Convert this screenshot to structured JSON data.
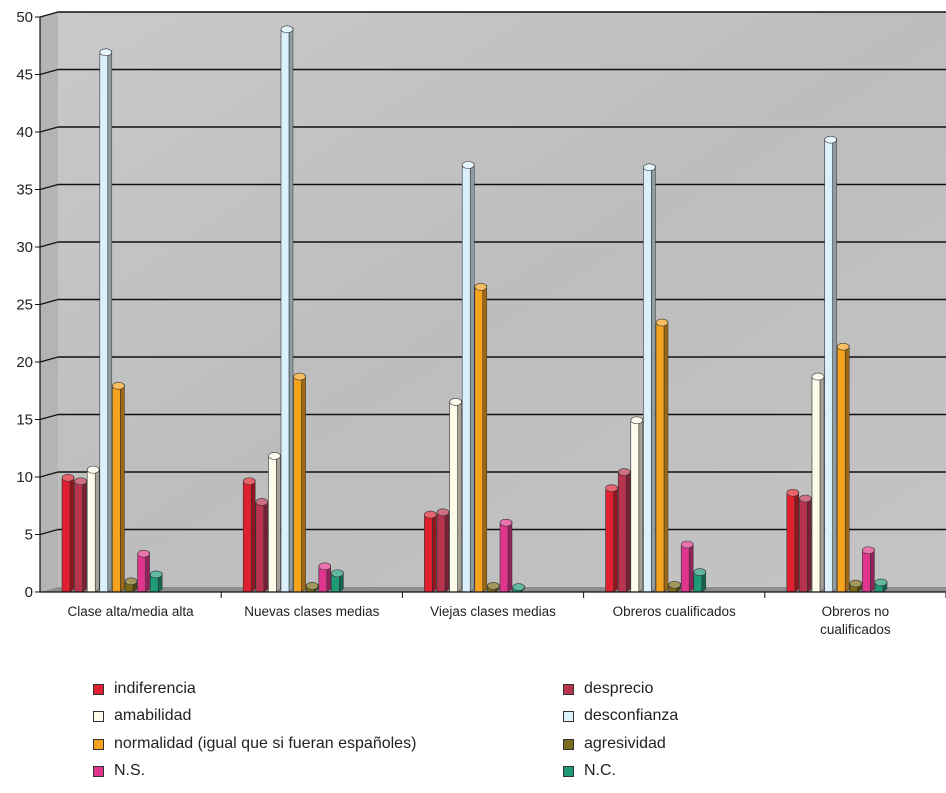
{
  "chart_data": {
    "type": "bar",
    "title": "",
    "xlabel": "",
    "ylabel": "",
    "ylim": [
      0,
      50
    ],
    "yticks": [
      0,
      5,
      10,
      15,
      20,
      25,
      30,
      35,
      40,
      45,
      50
    ],
    "grid": true,
    "legend_position": "bottom",
    "categories": [
      [
        "Clase alta/media alta"
      ],
      [
        "Nuevas clases medias"
      ],
      [
        "Viejas clases medias"
      ],
      [
        "Obreros cualificados"
      ],
      [
        "Obreros no",
        "cualificados"
      ]
    ],
    "series": [
      {
        "name": "indiferencia",
        "color": "#e0202e",
        "values": [
          9.8,
          9.5,
          6.6,
          8.9,
          8.5
        ]
      },
      {
        "name": "desprecio",
        "color": "#b8334e",
        "values": [
          9.5,
          7.7,
          6.8,
          10.3,
          8.0
        ]
      },
      {
        "name": "amabilidad",
        "color": "#fdfbe9",
        "values": [
          10.5,
          11.7,
          16.4,
          14.8,
          18.6
        ]
      },
      {
        "name": "desconfianza",
        "color": "#dbf0fb",
        "values": [
          46.8,
          48.8,
          37.0,
          36.8,
          39.2
        ]
      },
      {
        "name": "normalidad (igual que si fueran españoles)",
        "color": "#f5a21d",
        "values": [
          17.8,
          18.6,
          26.4,
          23.3,
          21.2
        ]
      },
      {
        "name": "agresividad",
        "color": "#7a6a1a",
        "values": [
          0.8,
          0.4,
          0.4,
          0.5,
          0.6
        ]
      },
      {
        "name": "N.S.",
        "color": "#e0358d",
        "values": [
          3.2,
          2.1,
          5.9,
          4.0,
          3.5
        ]
      },
      {
        "name": "N.C.",
        "color": "#1f9a77",
        "values": [
          1.4,
          1.5,
          0.3,
          1.6,
          0.7
        ]
      }
    ]
  }
}
